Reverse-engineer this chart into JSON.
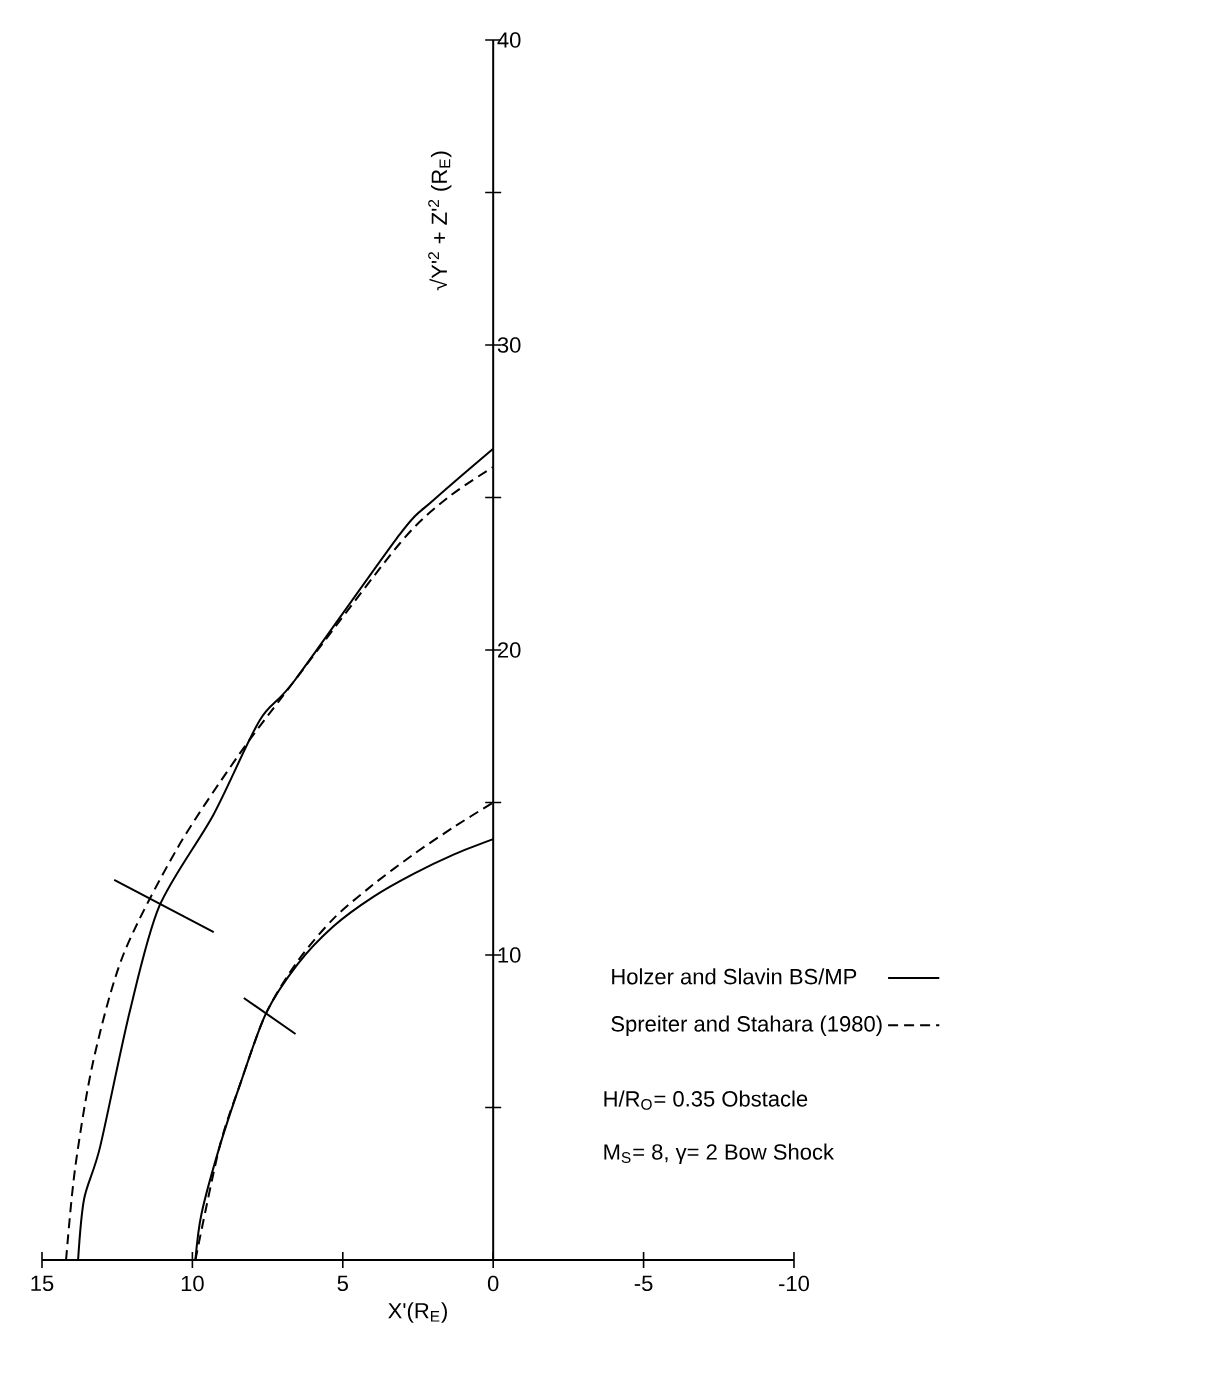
{
  "chart_data": {
    "type": "line",
    "xlabel": "X'(R$_{E}$)",
    "ylabel": "√Y'$^{2}$ + Z'$^{2}$ (R$_{E}$)",
    "xlim": [
      15,
      -10
    ],
    "ylim": [
      0,
      40
    ],
    "xticks": [
      15,
      10,
      5,
      0,
      -5,
      -10
    ],
    "yticks": [
      {
        "value": 5,
        "label": null
      },
      10,
      {
        "value": 15,
        "label": null
      },
      20,
      {
        "value": 25,
        "label": null
      },
      30,
      {
        "value": 35,
        "label": null
      },
      40
    ],
    "legend": "right",
    "annotations": [
      "H/R$_{O}$= 0.35   Obstacle",
      "M$_{S}$= 8, γ= 2   Bow Shock"
    ],
    "series": [
      {
        "name": "Holzer and Slavin  BS/MP",
        "color": "#000000",
        "line_style": "solid",
        "x": [
          13.8,
          13.6,
          13.07,
          12.1,
          11.1,
          9.3,
          7.76,
          6.6,
          3.1,
          2.0,
          0
        ],
        "values": [
          0,
          2,
          3.7,
          8.07,
          11.6,
          14.6,
          17.7,
          19,
          23.8,
          24.9,
          26.6
        ]
      },
      {
        "name": "Spreiter and Stahara (1980)",
        "color": "#000000",
        "line_style": "dashed",
        "x": [
          14.2,
          13.9,
          13.3,
          12.3,
          10.5,
          8.5,
          6.6,
          3.1,
          1.5,
          0
        ],
        "values": [
          0,
          3,
          6.5,
          10,
          13.5,
          16.5,
          19,
          23.5,
          25,
          26.0
        ]
      },
      {
        "color": "#000000",
        "line_style": "solid",
        "x": [
          9.9,
          9.7,
          9.1,
          8.4,
          7.56,
          6.5,
          5.3,
          4.0,
          2.65,
          1.3,
          0
        ],
        "values": [
          0,
          1.5,
          3.7,
          5.8,
          8.07,
          9.7,
          10.95,
          11.9,
          12.66,
          13.3,
          13.8
        ]
      },
      {
        "color": "#000000",
        "line_style": "dashed",
        "x": [
          9.9,
          9.1,
          8.4,
          7.56,
          6.5,
          5.3,
          4.0,
          2.65,
          1.3,
          0
        ],
        "values": [
          0,
          3.7,
          5.8,
          8.07,
          9.8,
          11.2,
          12.3,
          13.3,
          14.2,
          15.0
        ]
      },
      {
        "color": "#000000",
        "line_style": "solid",
        "x": [
          12.6,
          9.29
        ],
        "values": [
          12.46,
          10.75
        ]
      },
      {
        "color": "#000000",
        "line_style": "solid",
        "x": [
          8.29,
          6.57
        ],
        "values": [
          8.59,
          7.41
        ]
      }
    ]
  }
}
